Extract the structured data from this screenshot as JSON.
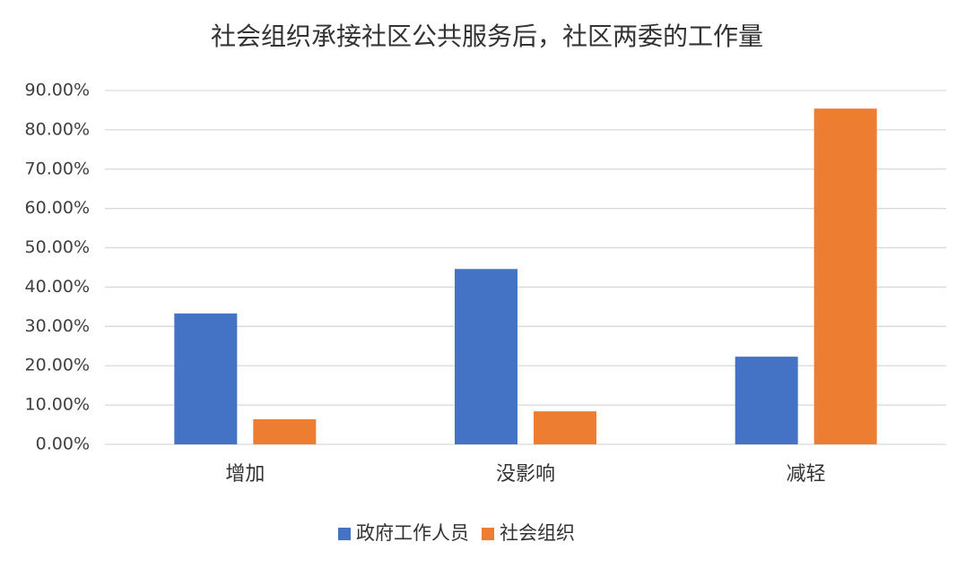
{
  "chart_data": {
    "type": "bar",
    "title": "社会组织承接社区公共服务后，社区两委的工作量",
    "categories": [
      "增加",
      "没影响",
      "减轻"
    ],
    "series": [
      {
        "name": "政府工作人员",
        "color": "#4472c4",
        "values": [
          33.3,
          44.6,
          22.3
        ]
      },
      {
        "name": "社会组织",
        "color": "#ed7d31",
        "values": [
          6.4,
          8.4,
          85.4
        ]
      }
    ],
    "ylim": [
      0,
      90
    ],
    "yticks": [
      {
        "value": 0,
        "label": "0.00%"
      },
      {
        "value": 10,
        "label": "10.00%"
      },
      {
        "value": 20,
        "label": "20.00%"
      },
      {
        "value": 30,
        "label": "30.00%"
      },
      {
        "value": 40,
        "label": "40.00%"
      },
      {
        "value": 50,
        "label": "50.00%"
      },
      {
        "value": 60,
        "label": "60.00%"
      },
      {
        "value": 70,
        "label": "70.00%"
      },
      {
        "value": 80,
        "label": "80.00%"
      },
      {
        "value": 90,
        "label": "90.00%"
      }
    ],
    "grid": true,
    "legend": "bottom"
  }
}
